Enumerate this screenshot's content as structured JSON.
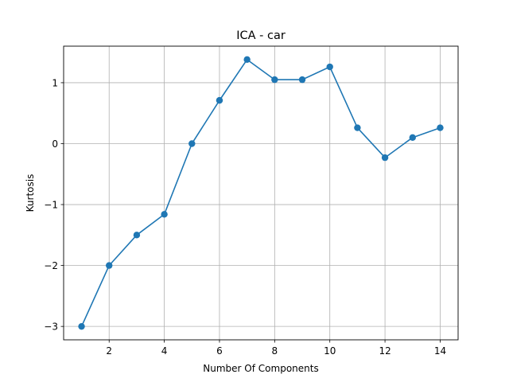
{
  "chart_data": {
    "type": "line",
    "title": "ICA - car",
    "xlabel": "Number Of Components",
    "ylabel": "Kurtosis",
    "x": [
      1,
      2,
      3,
      4,
      5,
      6,
      7,
      8,
      9,
      10,
      11,
      12,
      13,
      14
    ],
    "series": [
      {
        "values": [
          -3.0,
          -2.0,
          -1.5,
          -1.16,
          0.0,
          0.71,
          1.38,
          1.05,
          1.05,
          1.26,
          0.26,
          -0.23,
          0.1,
          0.26
        ],
        "color": "#1f77b4",
        "marker": "circle"
      }
    ],
    "xlim": [
      0.35,
      14.65
    ],
    "ylim": [
      -3.22,
      1.6
    ],
    "xticks": [
      2,
      4,
      6,
      8,
      10,
      12,
      14
    ],
    "yticks": [
      -3,
      -2,
      -1,
      0,
      1
    ],
    "xtick_labels": [
      "2",
      "4",
      "6",
      "8",
      "10",
      "12",
      "14"
    ],
    "ytick_labels": [
      "−3",
      "−2",
      "−1",
      "0",
      "1"
    ],
    "grid": true,
    "legend": false
  }
}
